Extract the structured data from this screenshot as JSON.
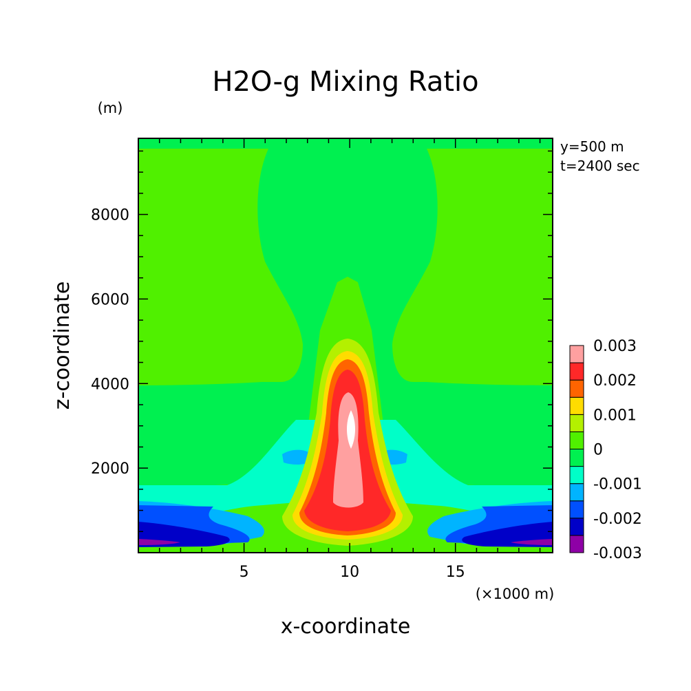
{
  "chart_data": {
    "type": "heatmap",
    "title": "H2O-g Mixing Ratio",
    "xlabel": "x-coordinate",
    "ylabel": "z-coordinate",
    "x_unit": "(×1000 m)",
    "y_unit": "(m)",
    "xlim": [
      0,
      19.6
    ],
    "ylim": [
      0,
      9800
    ],
    "x_ticks": [
      "5",
      "10",
      "15"
    ],
    "x_tick_values": [
      5,
      10,
      15
    ],
    "y_ticks": [
      "2000",
      "4000",
      "6000",
      "8000"
    ],
    "y_tick_values": [
      2000,
      4000,
      6000,
      8000
    ],
    "annotations": [
      "y=500 m",
      "t=2400 sec"
    ],
    "colorbar": {
      "labels": [
        "0.003",
        "0.002",
        "0.001",
        "0",
        "-0.001",
        "-0.002",
        "-0.003"
      ],
      "label_values": [
        0.003,
        0.002,
        0.001,
        0,
        -0.001,
        -0.002,
        -0.003
      ],
      "colors": [
        "#8e00a6",
        "#0000c8",
        "#0050ff",
        "#00b4ff",
        "#00ffc8",
        "#00f050",
        "#50f000",
        "#b4f000",
        "#ffdc00",
        "#ff6400",
        "#ff2828",
        "#ffa0a0",
        "#ffffff"
      ]
    }
  }
}
